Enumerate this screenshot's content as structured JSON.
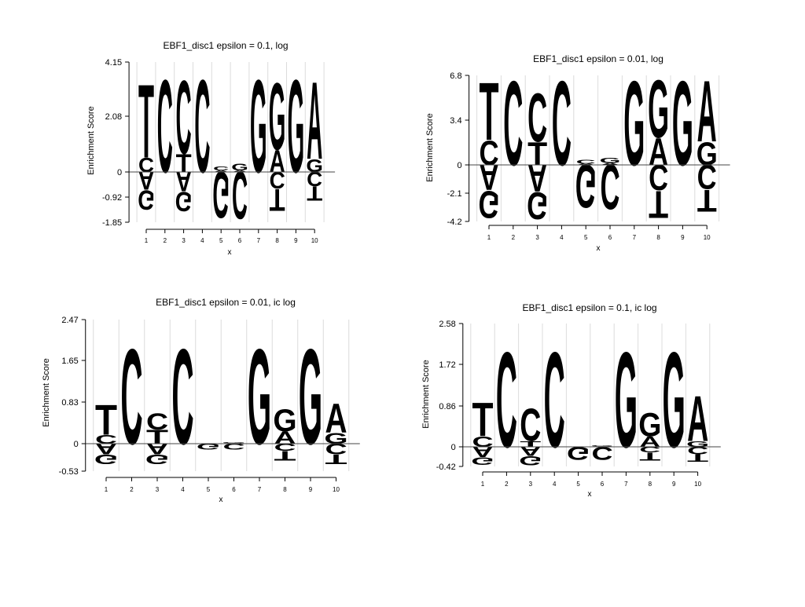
{
  "colors": {
    "A": "#c8342c",
    "C": "#f0a662",
    "G": "#a8d8a0",
    "T": "#3f7fb8"
  },
  "chart_data": [
    {
      "type": "sequence_logo",
      "title": "EBF1_disc1 epsilon = 0.1, log",
      "xlabel": "x",
      "ylabel": "Enrichment Score",
      "yticks": [
        "4.15",
        "2.08",
        "0",
        "-0.92",
        "-1.85"
      ],
      "ylim": [
        -1.85,
        4.15
      ],
      "xticks": [
        "1",
        "2",
        "3",
        "4",
        "5",
        "6",
        "7",
        "8",
        "9",
        "10"
      ],
      "positions": [
        {
          "pos": [
            [
              "C",
              0.55
            ],
            [
              "T",
              2.85
            ]
          ],
          "neg": [
            [
              "A",
              0.7
            ],
            [
              "G",
              0.75
            ]
          ]
        },
        {
          "pos": [
            [
              "C",
              3.6
            ]
          ],
          "neg": []
        },
        {
          "pos": [
            [
              "T",
              0.7
            ],
            [
              "C",
              2.85
            ]
          ],
          "neg": [
            [
              "A",
              0.75
            ],
            [
              "G",
              0.75
            ]
          ]
        },
        {
          "pos": [
            [
              "C",
              3.6
            ]
          ],
          "neg": []
        },
        {
          "pos": [
            [
              "A",
              0.06
            ],
            [
              "C",
              0.15
            ]
          ],
          "neg": [
            [
              "G",
              1.8
            ]
          ]
        },
        {
          "pos": [
            [
              "A",
              0.06
            ],
            [
              "G",
              0.25
            ]
          ],
          "neg": [
            [
              "C",
              1.85
            ]
          ]
        },
        {
          "pos": [
            [
              "G",
              3.6
            ]
          ],
          "neg": []
        },
        {
          "pos": [
            [
              "A",
              0.85
            ],
            [
              "G",
              2.6
            ]
          ],
          "neg": [
            [
              "C",
              0.65
            ],
            [
              "T",
              0.85
            ]
          ]
        },
        {
          "pos": [
            [
              "G",
              3.6
            ]
          ],
          "neg": []
        },
        {
          "pos": [
            [
              "G",
              0.5
            ],
            [
              "A",
              3.0
            ]
          ],
          "neg": [
            [
              "C",
              0.55
            ],
            [
              "T",
              0.55
            ]
          ]
        }
      ]
    },
    {
      "type": "sequence_logo",
      "title": "EBF1_disc1 epsilon = 0.01, log",
      "xlabel": "x",
      "ylabel": "Enrichment Score",
      "yticks": [
        "6.8",
        "3.4",
        "0",
        "-2.1",
        "-4.2"
      ],
      "ylim": [
        -4.2,
        6.8
      ],
      "xticks": [
        "1",
        "2",
        "3",
        "4",
        "5",
        "6",
        "7",
        "8",
        "9",
        "10"
      ],
      "positions": [
        {
          "pos": [
            [
              "C",
              1.9
            ],
            [
              "T",
              4.5
            ]
          ],
          "neg": [
            [
              "A",
              2.0
            ],
            [
              "G",
              2.1
            ]
          ]
        },
        {
          "pos": [
            [
              "C",
              6.6
            ]
          ],
          "neg": []
        },
        {
          "pos": [
            [
              "T",
              1.8
            ],
            [
              "C",
              3.8
            ]
          ],
          "neg": [
            [
              "A",
              2.1
            ],
            [
              "G",
              2.1
            ]
          ]
        },
        {
          "pos": [
            [
              "C",
              6.6
            ]
          ],
          "neg": []
        },
        {
          "pos": [
            [
              "A",
              0.1
            ],
            [
              "C",
              0.3
            ]
          ],
          "neg": [
            [
              "G",
              3.4
            ]
          ]
        },
        {
          "pos": [
            [
              "A",
              0.15
            ],
            [
              "G",
              0.4
            ]
          ],
          "neg": [
            [
              "C",
              3.5
            ]
          ]
        },
        {
          "pos": [
            [
              "G",
              6.6
            ]
          ],
          "neg": []
        },
        {
          "pos": [
            [
              "A",
              2.1
            ],
            [
              "G",
              4.5
            ]
          ],
          "neg": [
            [
              "C",
              2.0
            ],
            [
              "T",
              2.1
            ]
          ]
        },
        {
          "pos": [
            [
              "G",
              6.6
            ]
          ],
          "neg": []
        },
        {
          "pos": [
            [
              "G",
              1.8
            ],
            [
              "A",
              4.8
            ]
          ],
          "neg": [
            [
              "C",
              1.9
            ],
            [
              "T",
              1.7
            ]
          ]
        }
      ]
    },
    {
      "type": "sequence_logo",
      "title": "EBF1_disc1 epsilon = 0.01, ic log",
      "xlabel": "x",
      "ylabel": "Enrichment Score",
      "yticks": [
        "2.47",
        "1.65",
        "0.83",
        "0",
        "-0.53"
      ],
      "ylim": [
        -0.53,
        2.47
      ],
      "xticks": [
        "1",
        "2",
        "3",
        "4",
        "5",
        "6",
        "7",
        "8",
        "9",
        "10"
      ],
      "positions": [
        {
          "pos": [
            [
              "C",
              0.18
            ],
            [
              "T",
              0.62
            ]
          ],
          "neg": [
            [
              "A",
              0.22
            ],
            [
              "G",
              0.2
            ]
          ]
        },
        {
          "pos": [
            [
              "C",
              1.95
            ]
          ],
          "neg": []
        },
        {
          "pos": [
            [
              "T",
              0.28
            ],
            [
              "C",
              0.33
            ]
          ],
          "neg": [
            [
              "A",
              0.22
            ],
            [
              "G",
              0.2
            ]
          ]
        },
        {
          "pos": [
            [
              "C",
              1.95
            ]
          ],
          "neg": []
        },
        {
          "pos": [],
          "neg": [
            [
              "G",
              0.12
            ]
          ]
        },
        {
          "pos": [
            [
              "A",
              0.01
            ],
            [
              "G",
              0.02
            ]
          ],
          "neg": [
            [
              "C",
              0.12
            ]
          ]
        },
        {
          "pos": [
            [
              "G",
              1.95
            ]
          ],
          "neg": []
        },
        {
          "pos": [
            [
              "A",
              0.25
            ],
            [
              "G",
              0.45
            ]
          ],
          "neg": [
            [
              "C",
              0.15
            ],
            [
              "T",
              0.2
            ]
          ]
        },
        {
          "pos": [
            [
              "G",
              1.95
            ]
          ],
          "neg": []
        },
        {
          "pos": [
            [
              "G",
              0.22
            ],
            [
              "A",
              0.6
            ]
          ],
          "neg": [
            [
              "C",
              0.22
            ],
            [
              "T",
              0.2
            ]
          ]
        }
      ]
    },
    {
      "type": "sequence_logo",
      "title": "EBF1_disc1 epsilon = 0.1, ic log",
      "xlabel": "x",
      "ylabel": "Enrichment Score",
      "yticks": [
        "2.58",
        "1.72",
        "0.86",
        "0",
        "-0.42"
      ],
      "ylim": [
        -0.42,
        2.58
      ],
      "xticks": [
        "1",
        "2",
        "3",
        "4",
        "5",
        "6",
        "7",
        "8",
        "9",
        "10"
      ],
      "positions": [
        {
          "pos": [
            [
              "C",
              0.22
            ],
            [
              "T",
              0.72
            ]
          ],
          "neg": [
            [
              "A",
              0.22
            ],
            [
              "G",
              0.16
            ]
          ]
        },
        {
          "pos": [
            [
              "C",
              2.05
            ]
          ],
          "neg": []
        },
        {
          "pos": [
            [
              "T",
              0.12
            ],
            [
              "C",
              0.7
            ]
          ],
          "neg": [
            [
              "A",
              0.2
            ],
            [
              "G",
              0.2
            ]
          ]
        },
        {
          "pos": [
            [
              "C",
              2.05
            ]
          ],
          "neg": []
        },
        {
          "pos": [],
          "neg": [
            [
              "G",
              0.28
            ]
          ]
        },
        {
          "pos": [
            [
              "A",
              0.01
            ],
            [
              "G",
              0.02
            ]
          ],
          "neg": [
            [
              "C",
              0.28
            ]
          ]
        },
        {
          "pos": [
            [
              "G",
              2.05
            ]
          ],
          "neg": []
        },
        {
          "pos": [
            [
              "A",
              0.22
            ],
            [
              "G",
              0.5
            ]
          ],
          "neg": [
            [
              "C",
              0.12
            ],
            [
              "T",
              0.17
            ]
          ]
        },
        {
          "pos": [
            [
              "G",
              2.05
            ]
          ],
          "neg": []
        },
        {
          "pos": [
            [
              "G",
              0.12
            ],
            [
              "A",
              0.98
            ]
          ],
          "neg": [
            [
              "C",
              0.16
            ],
            [
              "T",
              0.16
            ]
          ]
        }
      ]
    }
  ]
}
